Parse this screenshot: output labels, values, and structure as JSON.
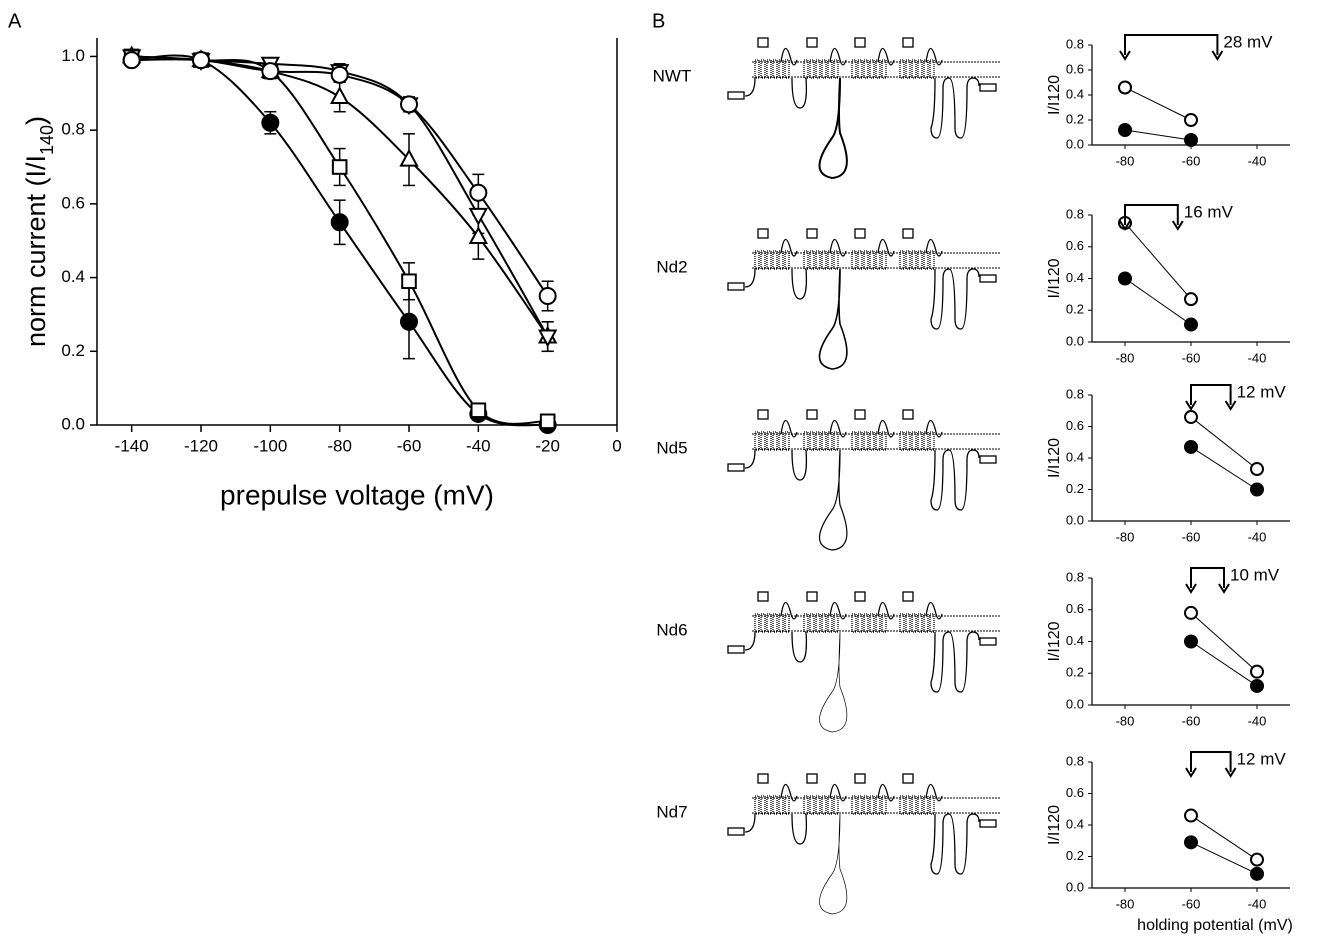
{
  "chart_data": [
    {
      "type": "line",
      "panel": "A",
      "xlabel": "prepulse voltage (mV)",
      "ylabel": [
        "norm current (I/I",
        "140",
        ")"
      ],
      "xlim": [
        -150,
        0
      ],
      "ylim": [
        0,
        1.05
      ],
      "xticks": [
        -140,
        -120,
        -100,
        -80,
        -60,
        -40,
        -20,
        0
      ],
      "yticks": [
        {
          "value": 0,
          "label": "0.0"
        },
        {
          "value": 0.2,
          "label": "0.2"
        },
        {
          "value": 0.4,
          "label": "0.4"
        },
        {
          "value": 0.6,
          "label": "0.6"
        },
        {
          "value": 0.8,
          "label": "0.8"
        },
        {
          "value": 1,
          "label": "1.0"
        }
      ],
      "x": [
        -140,
        -120,
        -100,
        -80,
        -60,
        -40,
        -20
      ],
      "series": [
        {
          "marker": "circle",
          "fill": "#000000",
          "values": [
            0.99,
            0.99,
            0.82,
            0.55,
            0.28,
            0.03,
            0.0
          ],
          "errors": [
            0.01,
            0.01,
            0.03,
            0.06,
            0.1,
            0.01,
            0.01
          ]
        },
        {
          "marker": "square",
          "fill": "#ffffff",
          "values": [
            1.0,
            0.99,
            0.96,
            0.7,
            0.39,
            0.04,
            0.01
          ],
          "errors": [
            0.01,
            0.01,
            0.01,
            0.05,
            0.05,
            0.01,
            0.01
          ]
        },
        {
          "marker": "triangle-up",
          "fill": "#ffffff",
          "values": [
            1.0,
            0.99,
            0.96,
            0.89,
            0.72,
            0.51,
            0.24
          ],
          "errors": [
            0.01,
            0.01,
            0.02,
            0.04,
            0.07,
            0.06,
            0.04
          ]
        },
        {
          "marker": "triangle-down",
          "fill": "#ffffff",
          "values": [
            1.0,
            0.99,
            0.98,
            0.96,
            0.87,
            0.57,
            0.24
          ],
          "errors": [
            0.01,
            0.01,
            0.01,
            0.02,
            0.02,
            0.05,
            0.04
          ]
        },
        {
          "marker": "circle",
          "fill": "#ffffff",
          "values": [
            0.99,
            0.99,
            0.96,
            0.95,
            0.87,
            0.63,
            0.35
          ],
          "errors": [
            0.01,
            0.01,
            0.02,
            0.02,
            0.02,
            0.05,
            0.04
          ]
        }
      ]
    },
    {
      "type": "line",
      "panel": "B",
      "construct": "NWT",
      "ylabel": "I/I120",
      "xlim": [
        -90,
        -30
      ],
      "ylim": [
        0,
        0.8
      ],
      "xticks": [
        -80,
        -60,
        -40
      ],
      "yticks": [
        {
          "value": 0,
          "label": "0.0"
        },
        {
          "value": 0.2,
          "label": "0.2"
        },
        {
          "value": 0.4,
          "label": "0.4"
        },
        {
          "value": 0.6,
          "label": "0.6"
        },
        {
          "value": 0.8,
          "label": "0.8"
        }
      ],
      "x": [
        -80,
        -60
      ],
      "shift_x": [
        -80,
        -52
      ],
      "shift_label": "28 mV",
      "series": [
        {
          "marker": "circle",
          "fill": "#ffffff",
          "values": [
            0.46,
            0.2
          ]
        },
        {
          "marker": "circle",
          "fill": "#000000",
          "values": [
            0.12,
            0.04
          ]
        }
      ]
    },
    {
      "type": "line",
      "construct": "Nd2",
      "ylabel": "I/I120",
      "xlim": [
        -90,
        -30
      ],
      "ylim": [
        0,
        0.8
      ],
      "xticks": [
        -80,
        -60,
        -40
      ],
      "yticks": [
        {
          "value": 0,
          "label": "0.0"
        },
        {
          "value": 0.2,
          "label": "0.2"
        },
        {
          "value": 0.4,
          "label": "0.4"
        },
        {
          "value": 0.6,
          "label": "0.6"
        },
        {
          "value": 0.8,
          "label": "0.8"
        }
      ],
      "x": [
        -80,
        -60
      ],
      "shift_x": [
        -80,
        -64
      ],
      "shift_label": "16 mV",
      "series": [
        {
          "marker": "circle",
          "fill": "#ffffff",
          "values": [
            0.75,
            0.27
          ]
        },
        {
          "marker": "circle",
          "fill": "#000000",
          "values": [
            0.4,
            0.11
          ]
        }
      ]
    },
    {
      "type": "line",
      "construct": "Nd5",
      "ylabel": "I/I120",
      "xlim": [
        -90,
        -30
      ],
      "ylim": [
        0,
        0.8
      ],
      "xticks": [
        -80,
        -60,
        -40
      ],
      "yticks": [
        {
          "value": 0,
          "label": "0.0"
        },
        {
          "value": 0.2,
          "label": "0.2"
        },
        {
          "value": 0.4,
          "label": "0.4"
        },
        {
          "value": 0.6,
          "label": "0.6"
        },
        {
          "value": 0.8,
          "label": "0.8"
        }
      ],
      "x": [
        -60,
        -40
      ],
      "shift_x": [
        -60,
        -48
      ],
      "shift_label": "12 mV",
      "series": [
        {
          "marker": "circle",
          "fill": "#ffffff",
          "values": [
            0.66,
            0.33
          ]
        },
        {
          "marker": "circle",
          "fill": "#000000",
          "values": [
            0.47,
            0.2
          ]
        }
      ]
    },
    {
      "type": "line",
      "construct": "Nd6",
      "ylabel": "I/I120",
      "xlim": [
        -90,
        -30
      ],
      "ylim": [
        0,
        0.8
      ],
      "xticks": [
        -80,
        -60,
        -40
      ],
      "yticks": [
        {
          "value": 0,
          "label": "0.0"
        },
        {
          "value": 0.2,
          "label": "0.2"
        },
        {
          "value": 0.4,
          "label": "0.4"
        },
        {
          "value": 0.6,
          "label": "0.6"
        },
        {
          "value": 0.8,
          "label": "0.8"
        }
      ],
      "x": [
        -60,
        -40
      ],
      "shift_x": [
        -60,
        -50
      ],
      "shift_label": "10 mV",
      "series": [
        {
          "marker": "circle",
          "fill": "#ffffff",
          "values": [
            0.58,
            0.21
          ]
        },
        {
          "marker": "circle",
          "fill": "#000000",
          "values": [
            0.4,
            0.12
          ]
        }
      ]
    },
    {
      "type": "line",
      "construct": "Nd7",
      "ylabel": "I/I120",
      "xlabel": "holding potential (mV)",
      "xlim": [
        -90,
        -30
      ],
      "ylim": [
        0,
        0.8
      ],
      "xticks": [
        -80,
        -60,
        -40
      ],
      "yticks": [
        {
          "value": 0,
          "label": "0.0"
        },
        {
          "value": 0.2,
          "label": "0.2"
        },
        {
          "value": 0.4,
          "label": "0.4"
        },
        {
          "value": 0.6,
          "label": "0.6"
        },
        {
          "value": 0.8,
          "label": "0.8"
        }
      ],
      "x": [
        -60,
        -40
      ],
      "shift_x": [
        -60,
        -48
      ],
      "shift_label": "12 mV",
      "series": [
        {
          "marker": "circle",
          "fill": "#ffffff",
          "values": [
            0.46,
            0.18
          ]
        },
        {
          "marker": "circle",
          "fill": "#000000",
          "values": [
            0.29,
            0.09
          ]
        }
      ]
    }
  ]
}
